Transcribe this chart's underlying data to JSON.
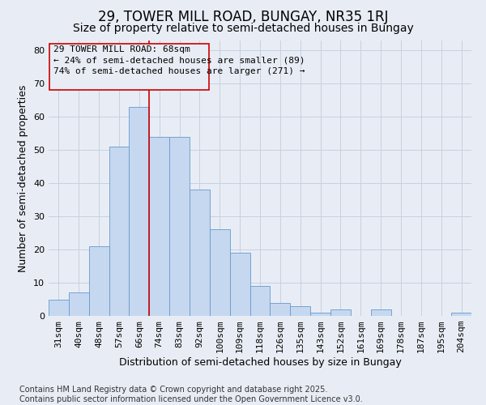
{
  "title_line1": "29, TOWER MILL ROAD, BUNGAY, NR35 1RJ",
  "title_line2": "Size of property relative to semi-detached houses in Bungay",
  "xlabel": "Distribution of semi-detached houses by size in Bungay",
  "ylabel": "Number of semi-detached properties",
  "categories": [
    "31sqm",
    "40sqm",
    "48sqm",
    "57sqm",
    "66sqm",
    "74sqm",
    "83sqm",
    "92sqm",
    "100sqm",
    "109sqm",
    "118sqm",
    "126sqm",
    "135sqm",
    "143sqm",
    "152sqm",
    "161sqm",
    "169sqm",
    "178sqm",
    "187sqm",
    "195sqm",
    "204sqm"
  ],
  "values": [
    5,
    7,
    21,
    51,
    63,
    54,
    54,
    38,
    26,
    19,
    9,
    4,
    3,
    1,
    2,
    0,
    2,
    0,
    0,
    0,
    1
  ],
  "bar_color": "#c5d8f0",
  "bar_edge_color": "#6699cc",
  "grid_color": "#c8d0e0",
  "background_color": "#e8edf5",
  "annotation_text": "29 TOWER MILL ROAD: 68sqm\n← 24% of semi-detached houses are smaller (89)\n74% of semi-detached houses are larger (271) →",
  "annotation_box_edge": "#cc0000",
  "vline_x_idx": 4,
  "vline_color": "#cc0000",
  "ylim_max": 83,
  "yticks": [
    0,
    10,
    20,
    30,
    40,
    50,
    60,
    70,
    80
  ],
  "footer": "Contains HM Land Registry data © Crown copyright and database right 2025.\nContains public sector information licensed under the Open Government Licence v3.0.",
  "title_fontsize": 12,
  "subtitle_fontsize": 10,
  "axis_label_fontsize": 9,
  "tick_fontsize": 8,
  "annotation_fontsize": 8,
  "footer_fontsize": 7
}
